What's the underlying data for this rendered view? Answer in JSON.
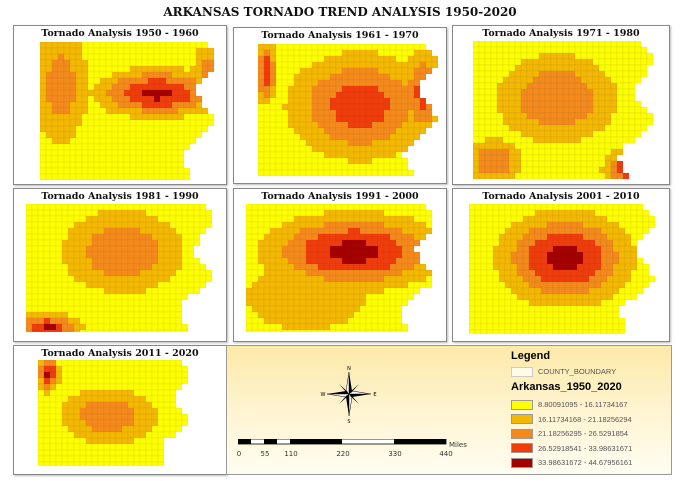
{
  "title": "ARKANSAS TORNADO TREND ANALYSIS 1950-2020",
  "panels": [
    {
      "title": "Tornado Analysis 1950 - 1960"
    },
    {
      "title": "Tornado Analysis 1961 - 1970"
    },
    {
      "title": "Tornado Analysis 1971 - 1980"
    },
    {
      "title": "Tornado Analysis 1981 - 1990"
    },
    {
      "title": "Tornado Analysis 1991 - 2000"
    },
    {
      "title": "Tornado Analysis 2001 - 2010"
    },
    {
      "title": "Tornado Analysis 2011 - 2020"
    }
  ],
  "legend": {
    "heading": "Legend",
    "boundary_label": "COUNTY_BOUNDARY",
    "layer_name": "Arkansas_1950_2020",
    "classes": [
      {
        "label": "8.80091095 - 16.11734167",
        "color": "#ffff00"
      },
      {
        "label": "16.11734168 - 21.18256294",
        "color": "#f5b800"
      },
      {
        "label": "21.18256295 - 26.5291854",
        "color": "#f58a1a"
      },
      {
        "label": "26.52918541 - 33.98631671",
        "color": "#f03c0a"
      },
      {
        "label": "33.98631672 - 44.67956161",
        "color": "#a50000"
      }
    ]
  },
  "compass": {
    "n": "N",
    "s": "S",
    "e": "E",
    "w": "W"
  },
  "scale": {
    "unit": "Miles",
    "ticks": [
      "0",
      "55",
      "110",
      "220",
      "330",
      "440"
    ]
  }
}
